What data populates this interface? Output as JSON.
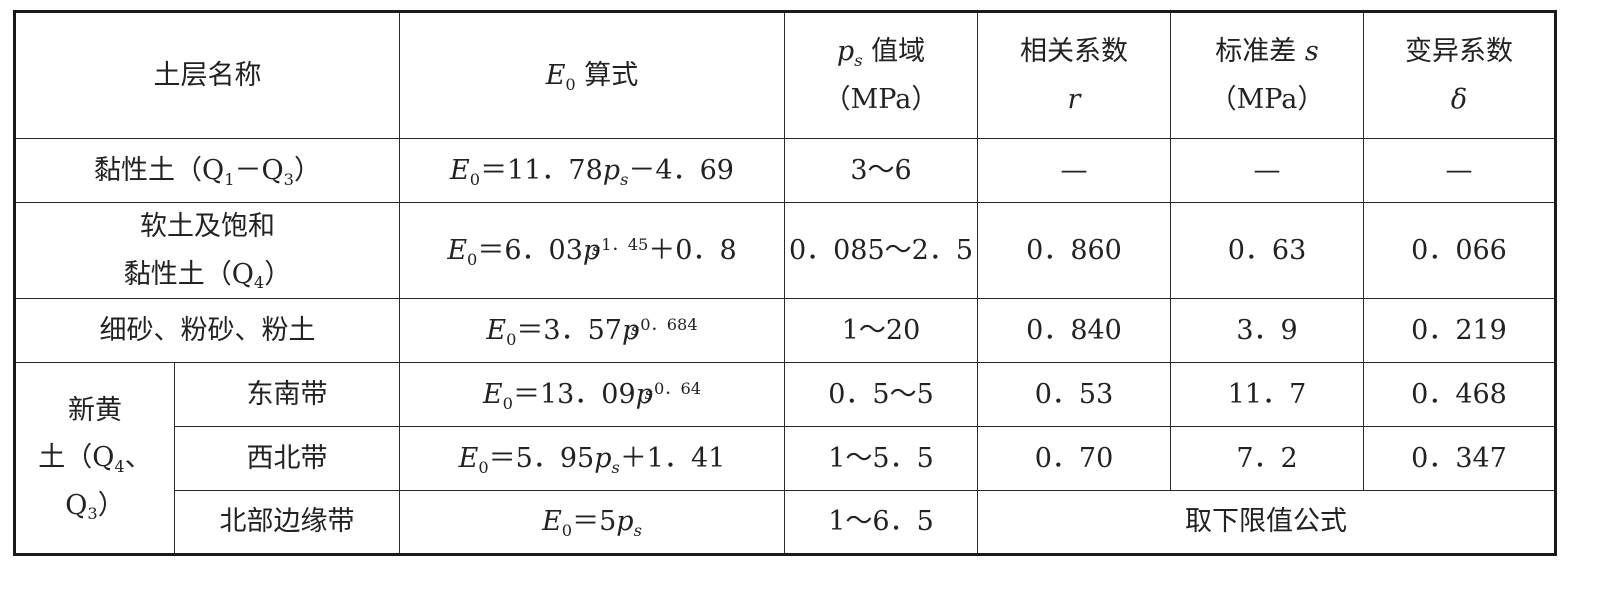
{
  "header": {
    "soil_name": "土层名称",
    "e0_formula": "E0 算式",
    "ps_range": "ps 值域",
    "ps_unit": "（MPa）",
    "corr": "相关系数",
    "corr_sym": "r",
    "std": "标准差 s",
    "std_unit": "（MPa）",
    "cv": "变异系数",
    "cv_sym": "δ"
  },
  "rows": [
    {
      "name": "黏性土（Q1－Q3）",
      "formula": "E0＝11．78ps－4．69",
      "range": "3～6",
      "r": "—",
      "s": "—",
      "cv": "—"
    },
    {
      "name_line1": "软土及饱和",
      "name_line2": "黏性土（Q4）",
      "formula": "E0＝6．03ps^1．45＋0．8",
      "range": "0．085～2．5",
      "r": "0．860",
      "s": "0．63",
      "cv": "0．066"
    },
    {
      "name": "细砂、粉砂、粉土",
      "formula": "E0＝3．57ps^0．684",
      "range": "1～20",
      "r": "0．840",
      "s": "3．9",
      "cv": "0．219"
    },
    {
      "group": "新黄土（Q4、Q3）",
      "name": "东南带",
      "formula": "E0＝13．09ps^0．64",
      "range": "0．5～5",
      "r": "0．53",
      "s": "11．7",
      "cv": "0．468"
    },
    {
      "name": "西北带",
      "formula": "E0＝5．95ps＋1．41",
      "range": "1～5．5",
      "r": "0．70",
      "s": "7．2",
      "cv": "0．347"
    },
    {
      "name": "北部边缘带",
      "formula": "E0＝5ps",
      "range": "1～6．5",
      "merged_note": "取下限值公式"
    }
  ],
  "formula_parts": {
    "E": "E",
    "sub0": "0",
    "p": "p",
    "subs": "s",
    "r0": "＝11．78",
    "r0b": "－4．69",
    "r1": "＝6．03",
    "r1exp": "1．45",
    "r1b": "＋0．8",
    "r2": "＝3．57",
    "r2exp": "0．684",
    "r3": "＝13．09",
    "r3exp": "0．64",
    "r4": "＝5．95",
    "r4b": "＋1．41",
    "r5": "＝5"
  },
  "name_parts": {
    "r0a": "黏性土（Q",
    "r0s1": "1",
    "r0b": "－Q",
    "r0s2": "3",
    "r0c": "）",
    "r1a": "黏性土（Q",
    "r1s": "4",
    "r1c": "）",
    "g1": "新黄",
    "g2a": "土（Q",
    "g2s": "4",
    "g2b": "、",
    "g3a": "Q",
    "g3s": "3",
    "g3b": "）"
  },
  "header_parts": {
    "E": "E",
    "sub0": "0",
    "suffix": " 算式",
    "p": "p",
    "subs": "s",
    "ps_suffix": " 值域",
    "std_text": "标准差 ",
    "std_sym": "s"
  }
}
